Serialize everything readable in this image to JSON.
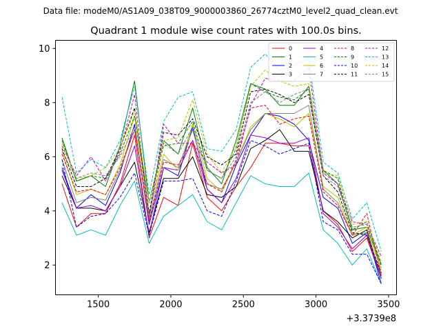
{
  "figure": {
    "suptitle": "Data file: modeM0/AS1A09_038T09_9000003860_26774cztM0_level2_quad_clean.evt"
  },
  "chart_data": {
    "type": "line",
    "title": "Quadrant 1 module wise count rates with 100.0s bins.",
    "xlabel": "",
    "ylabel": "",
    "x_offset_label": "+3.3739e8",
    "xlim": [
      1205,
      3555
    ],
    "ylim": [
      0.9,
      10.3
    ],
    "xticks": [
      1500,
      2000,
      2500,
      3000,
      3500
    ],
    "xtick_labels": [
      "1500",
      "2000",
      "2500",
      "3000",
      "3500"
    ],
    "yticks": [
      2,
      4,
      6,
      8,
      10
    ],
    "ytick_labels": [
      "2",
      "4",
      "6",
      "8",
      "10"
    ],
    "grid": false,
    "legend_position": "top-right",
    "legend_columns": 4,
    "x": [
      1250,
      1350,
      1450,
      1550,
      1650,
      1750,
      1850,
      1950,
      2050,
      2150,
      2250,
      2350,
      2450,
      2550,
      2650,
      2750,
      2850,
      2950,
      3050,
      3150,
      3250,
      3350,
      3450
    ],
    "series": [
      {
        "name": "0",
        "color": "#ff0000",
        "dash": "solid",
        "values": [
          5.0,
          3.4,
          3.9,
          3.9,
          5.0,
          6.8,
          3.0,
          4.5,
          4.2,
          6.5,
          4.5,
          4.0,
          4.9,
          5.6,
          6.5,
          6.5,
          6.4,
          6.4,
          4.0,
          3.5,
          2.5,
          3.0,
          1.5
        ]
      },
      {
        "name": "1",
        "color": "#008000",
        "dash": "solid",
        "values": [
          6.7,
          5.1,
          5.3,
          4.9,
          6.4,
          8.8,
          4.3,
          6.6,
          6.1,
          7.8,
          5.6,
          5.0,
          6.6,
          8.7,
          8.5,
          7.9,
          7.9,
          8.6,
          5.5,
          5.0,
          3.3,
          3.4,
          2.0
        ]
      },
      {
        "name": "2",
        "color": "#0000ff",
        "dash": "solid",
        "values": [
          5.6,
          4.1,
          4.6,
          4.2,
          5.4,
          7.2,
          3.5,
          5.6,
          5.3,
          7.1,
          4.8,
          4.3,
          5.7,
          6.8,
          7.6,
          7.5,
          7.2,
          6.6,
          4.5,
          4.1,
          2.8,
          3.2,
          1.3
        ]
      },
      {
        "name": "3",
        "color": "#000000",
        "dash": "solid",
        "values": [
          5.3,
          4.1,
          4.1,
          4.0,
          4.9,
          5.8,
          3.2,
          5.2,
          5.2,
          6.0,
          4.6,
          4.5,
          4.9,
          6.3,
          6.6,
          7.0,
          6.2,
          6.2,
          4.0,
          3.6,
          3.0,
          3.3,
          1.5
        ]
      },
      {
        "name": "4",
        "color": "#9400d3",
        "dash": "solid",
        "values": [
          5.5,
          4.1,
          4.2,
          4.0,
          4.9,
          6.4,
          3.1,
          5.6,
          5.5,
          6.6,
          4.8,
          4.3,
          5.2,
          6.8,
          6.7,
          6.5,
          6.5,
          6.7,
          3.9,
          3.4,
          2.6,
          3.1,
          1.5
        ]
      },
      {
        "name": "5",
        "color": "#00bfbf",
        "dash": "solid",
        "values": [
          4.3,
          3.1,
          3.3,
          3.1,
          4.2,
          5.1,
          2.8,
          3.8,
          4.2,
          4.6,
          3.6,
          3.3,
          4.3,
          5.3,
          5.0,
          4.9,
          4.9,
          5.4,
          3.3,
          2.8,
          2.0,
          2.6,
          1.3
        ]
      },
      {
        "name": "6",
        "color": "#bfbf00",
        "dash": "solid",
        "values": [
          6.2,
          4.6,
          4.8,
          4.6,
          5.7,
          7.5,
          3.9,
          6.1,
          5.5,
          7.2,
          5.2,
          4.7,
          5.8,
          7.1,
          7.6,
          7.4,
          7.1,
          7.6,
          4.9,
          4.5,
          3.1,
          3.4,
          1.8
        ]
      },
      {
        "name": "7",
        "color": "#7f7f7f",
        "dash": "solid",
        "values": [
          5.9,
          4.3,
          4.5,
          4.4,
          5.5,
          7.0,
          3.7,
          5.9,
          5.6,
          7.0,
          5.0,
          4.8,
          5.8,
          7.0,
          7.6,
          7.6,
          7.6,
          7.9,
          4.8,
          4.3,
          3.1,
          3.2,
          1.6
        ]
      },
      {
        "name": "8",
        "color": "#ff0000",
        "dash": "dashed",
        "values": [
          6.1,
          4.7,
          4.8,
          4.6,
          5.6,
          7.0,
          3.6,
          5.8,
          5.7,
          6.6,
          5.0,
          4.7,
          5.9,
          7.8,
          7.9,
          7.2,
          7.4,
          7.5,
          4.7,
          4.2,
          3.1,
          3.9,
          1.6
        ]
      },
      {
        "name": "9",
        "color": "#008000",
        "dash": "dashed",
        "values": [
          6.6,
          5.1,
          5.3,
          5.2,
          6.1,
          7.5,
          4.3,
          6.4,
          6.5,
          7.3,
          5.5,
          5.2,
          6.3,
          8.7,
          8.4,
          8.2,
          8.1,
          8.5,
          5.5,
          5.2,
          3.3,
          3.6,
          2.0
        ]
      },
      {
        "name": "10",
        "color": "#0000ff",
        "dash": "dashed",
        "values": [
          5.9,
          3.4,
          3.8,
          3.9,
          4.5,
          5.4,
          3.1,
          5.1,
          5.1,
          5.2,
          4.0,
          3.8,
          5.1,
          6.6,
          6.4,
          6.1,
          6.3,
          6.5,
          3.6,
          3.3,
          2.4,
          2.4,
          1.3
        ]
      },
      {
        "name": "11",
        "color": "#000000",
        "dash": "dashed",
        "values": [
          6.3,
          4.9,
          4.9,
          5.2,
          6.3,
          7.8,
          3.9,
          6.9,
          6.8,
          7.4,
          6.0,
          5.7,
          6.1,
          8.4,
          8.5,
          8.3,
          8.0,
          8.3,
          5.3,
          4.7,
          3.2,
          3.1,
          1.7
        ]
      },
      {
        "name": "12",
        "color": "#c000c0",
        "dash": "dashed",
        "values": [
          6.4,
          5.3,
          6.0,
          5.1,
          6.2,
          8.3,
          3.7,
          7.2,
          6.5,
          6.5,
          5.8,
          5.4,
          5.7,
          7.9,
          8.9,
          8.8,
          8.8,
          9.3,
          5.4,
          5.0,
          3.6,
          3.5,
          2.3
        ]
      },
      {
        "name": "13",
        "color": "#00bfbf",
        "dash": "dashed",
        "values": [
          8.2,
          5.4,
          5.9,
          5.6,
          6.6,
          8.6,
          4.6,
          7.3,
          8.2,
          8.4,
          6.3,
          6.2,
          7.0,
          9.3,
          9.8,
          9.2,
          9.4,
          9.6,
          5.8,
          5.4,
          3.7,
          4.3,
          2.5
        ]
      },
      {
        "name": "14",
        "color": "#bfbf00",
        "dash": "dashed",
        "values": [
          6.5,
          5.2,
          5.3,
          5.6,
          6.3,
          7.7,
          4.3,
          6.6,
          6.7,
          8.1,
          6.1,
          5.4,
          6.4,
          8.6,
          9.2,
          8.8,
          8.6,
          8.7,
          5.4,
          5.3,
          3.5,
          3.6,
          2.1
        ]
      },
      {
        "name": "15",
        "color": "#7f7f7f",
        "dash": "dashed",
        "values": [
          6.2,
          5.2,
          5.4,
          5.3,
          6.0,
          7.1,
          3.8,
          6.5,
          6.1,
          7.1,
          5.5,
          5.2,
          6.0,
          8.0,
          8.4,
          8.0,
          8.3,
          8.5,
          5.3,
          4.9,
          3.4,
          3.5,
          1.9
        ]
      }
    ]
  }
}
